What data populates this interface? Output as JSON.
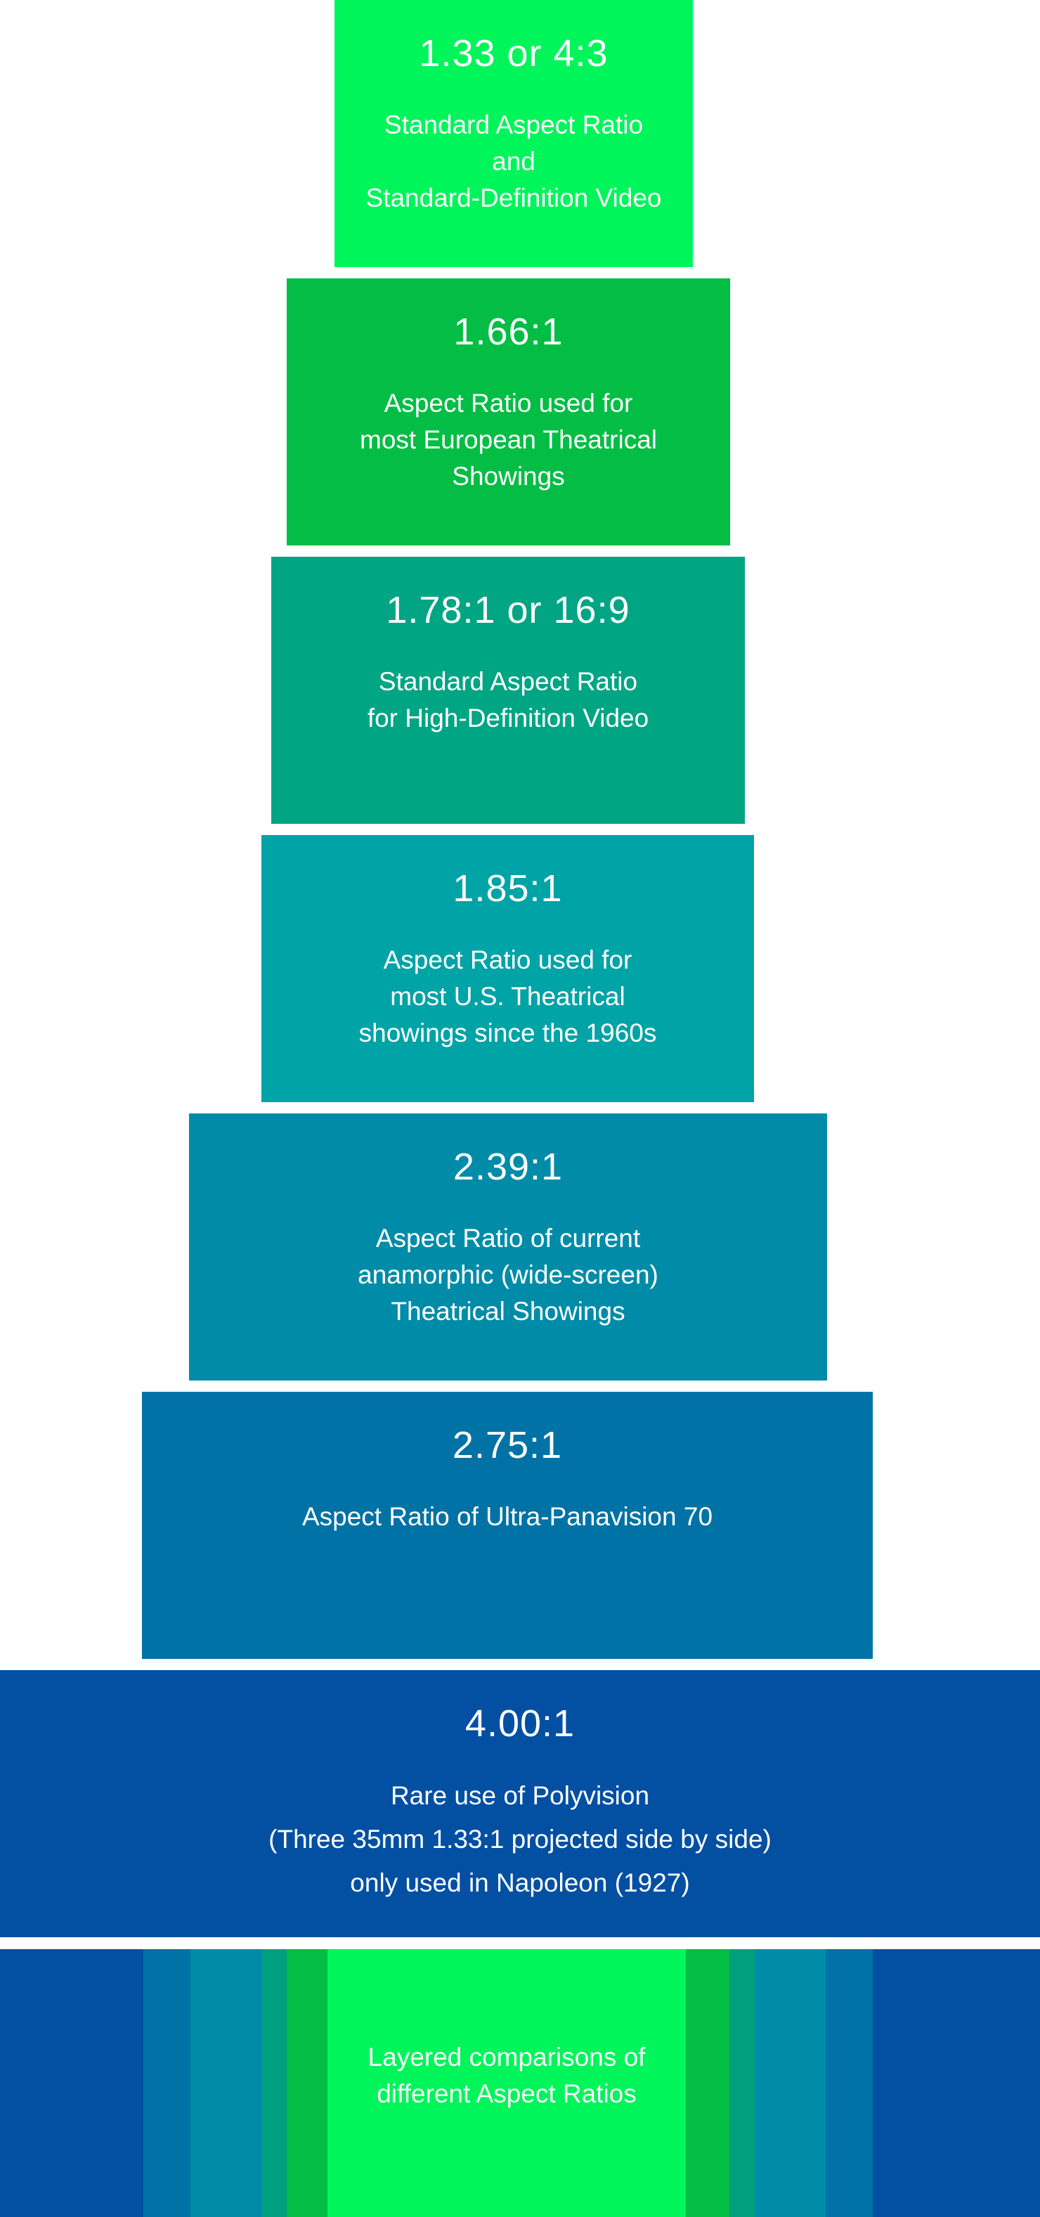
{
  "colors": {
    "ratio_1_33": "#00f55a",
    "ratio_1_66": "#04bd45",
    "ratio_1_78": "#00a583",
    "ratio_1_85": "#00a3a6",
    "ratio_2_39": "#008ca8",
    "ratio_2_75": "#0072a6",
    "ratio_4_00": "#0350a3",
    "text": "#ffffff",
    "background": "#ffffff"
  },
  "boxes": [
    {
      "ratio": "1.33 or 4:3",
      "lines": [
        "Standard Aspect Ratio",
        "and",
        "Standard-Definition Video"
      ]
    },
    {
      "ratio": "1.66:1",
      "lines": [
        "Aspect Ratio used for",
        "most European Theatrical",
        "Showings"
      ]
    },
    {
      "ratio": "1.78:1 or 16:9",
      "lines": [
        "Standard Aspect Ratio",
        "for High-Definition Video"
      ]
    },
    {
      "ratio": "1.85:1",
      "lines": [
        "Aspect Ratio used for",
        "most U.S. Theatrical",
        "showings since the 1960s"
      ]
    },
    {
      "ratio": "2.39:1",
      "lines": [
        "Aspect Ratio of current",
        "anamorphic (wide-screen)",
        "Theatrical Showings"
      ]
    },
    {
      "ratio": "2.75:1",
      "lines": [
        "Aspect Ratio of Ultra-Panavision 70"
      ]
    },
    {
      "ratio": "4.00:1",
      "lines": [
        "Rare use of Polyvision",
        "(Three 35mm 1.33:1 projected side by side)",
        "only used in Napoleon (1927)"
      ]
    }
  ],
  "comparison": {
    "lines": [
      "Layered comparisons of",
      "different Aspect Ratios"
    ]
  }
}
